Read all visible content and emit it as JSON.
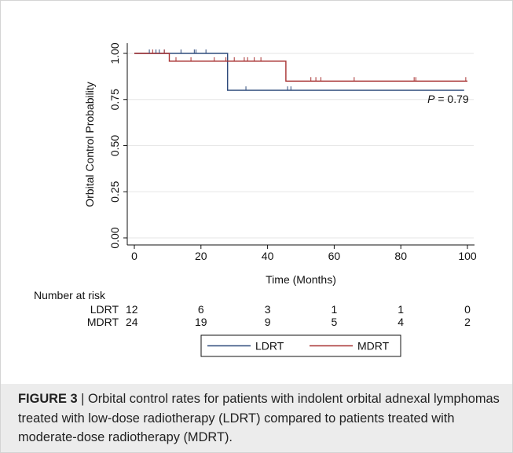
{
  "chart_data": {
    "type": "line",
    "ylabel": "Orbital Control Probability",
    "xlabel": "Time (Months)",
    "xlim": [
      0,
      100
    ],
    "ylim": [
      0,
      1.0
    ],
    "xticks": [
      "0",
      "20",
      "40",
      "60",
      "80",
      "100"
    ],
    "yticks": [
      "0.00",
      "0.25",
      "0.50",
      "0.75",
      "1.00"
    ],
    "grid": "horizontal",
    "annotation": {
      "p_label": "P",
      "p_value": " = 0.79",
      "x": 88,
      "y": 0.775
    },
    "series": [
      {
        "name": "LDRT",
        "color": "#2f4b7c",
        "steps": [
          [
            0,
            1.0
          ],
          [
            28,
            1.0
          ],
          [
            28,
            0.8
          ],
          [
            99,
            0.8
          ]
        ],
        "censors": [
          [
            4.5,
            1.0
          ],
          [
            6.5,
            1.0
          ],
          [
            7.5,
            1.0
          ],
          [
            9,
            1.0
          ],
          [
            14,
            1.0
          ],
          [
            18,
            1.0
          ],
          [
            18.5,
            1.0
          ],
          [
            21.5,
            1.0
          ],
          [
            33.5,
            0.8
          ],
          [
            46,
            0.8
          ],
          [
            47,
            0.8
          ]
        ]
      },
      {
        "name": "MDRT",
        "color": "#a83232",
        "steps": [
          [
            0,
            1.0
          ],
          [
            10.5,
            1.0
          ],
          [
            10.5,
            0.958
          ],
          [
            45.5,
            0.958
          ],
          [
            45.5,
            0.85
          ],
          [
            100,
            0.85
          ]
        ],
        "censors": [
          [
            5.5,
            1.0
          ],
          [
            9,
            1.0
          ],
          [
            12.5,
            0.958
          ],
          [
            17,
            0.958
          ],
          [
            24,
            0.958
          ],
          [
            27.5,
            0.958
          ],
          [
            30,
            0.958
          ],
          [
            33,
            0.958
          ],
          [
            34,
            0.958
          ],
          [
            36,
            0.958
          ],
          [
            38,
            0.958
          ],
          [
            53,
            0.85
          ],
          [
            54.5,
            0.85
          ],
          [
            56,
            0.85
          ],
          [
            66,
            0.85
          ],
          [
            84,
            0.85
          ],
          [
            84.5,
            0.85
          ],
          [
            99.5,
            0.85
          ]
        ]
      }
    ],
    "risk_table": {
      "title": "Number at risk",
      "times": [
        0,
        20,
        40,
        60,
        80,
        100
      ],
      "rows": [
        {
          "label": "LDRT",
          "values": [
            "12",
            "6",
            "3",
            "1",
            "1",
            "0"
          ]
        },
        {
          "label": "MDRT",
          "values": [
            "24",
            "19",
            "9",
            "5",
            "4",
            "2"
          ]
        }
      ]
    },
    "legend": {
      "placement": "bottom-center",
      "items": [
        {
          "label": "LDRT",
          "color": "#2f4b7c"
        },
        {
          "label": "MDRT",
          "color": "#a83232"
        }
      ]
    }
  },
  "caption": {
    "label": "FIGURE 3",
    "separator": " | ",
    "text": "Orbital control rates for patients with indolent orbital adnexal lymphomas treated with low-dose radiotherapy (LDRT) compared to patients treated with moderate-dose radiotherapy (MDRT)."
  }
}
